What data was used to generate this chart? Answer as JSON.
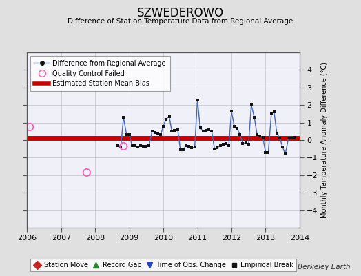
{
  "title": "SZWEDEROWO",
  "subtitle": "Difference of Station Temperature Data from Regional Average",
  "ylabel": "Monthly Temperature Anomaly Difference (°C)",
  "xlim": [
    2006,
    2014
  ],
  "ylim": [
    -5,
    5
  ],
  "yticks": [
    -4,
    -3,
    -2,
    -1,
    0,
    1,
    2,
    3,
    4
  ],
  "xticks": [
    2006,
    2007,
    2008,
    2009,
    2010,
    2011,
    2012,
    2013,
    2014
  ],
  "bias_level": 0.1,
  "fig_bg": "#e0e0e0",
  "plot_bg": "#f0f0f8",
  "line_color": "#4466bb",
  "marker_color": "#111111",
  "bias_color": "#cc0000",
  "qc_color": "#ff55bb",
  "watermark": "Berkeley Earth",
  "main_data_x": [
    2008.67,
    2008.75,
    2008.83,
    2008.92,
    2009.0,
    2009.08,
    2009.17,
    2009.25,
    2009.33,
    2009.42,
    2009.5,
    2009.58,
    2009.67,
    2009.75,
    2009.83,
    2009.92,
    2010.0,
    2010.08,
    2010.17,
    2010.25,
    2010.33,
    2010.42,
    2010.5,
    2010.58,
    2010.67,
    2010.75,
    2010.83,
    2010.92,
    2011.0,
    2011.08,
    2011.17,
    2011.25,
    2011.33,
    2011.42,
    2011.5,
    2011.58,
    2011.67,
    2011.75,
    2011.83,
    2011.92,
    2012.0,
    2012.08,
    2012.17,
    2012.25,
    2012.33,
    2012.42,
    2012.5,
    2012.58,
    2012.67,
    2012.75,
    2012.83,
    2012.92,
    2013.0,
    2013.08,
    2013.17,
    2013.25,
    2013.33,
    2013.42,
    2013.5,
    2013.58,
    2013.67,
    2013.75,
    2013.83
  ],
  "main_data_y": [
    -0.3,
    -0.4,
    1.3,
    0.3,
    0.3,
    -0.3,
    -0.3,
    -0.4,
    -0.3,
    -0.35,
    -0.35,
    -0.3,
    0.5,
    0.45,
    0.35,
    0.3,
    0.8,
    1.2,
    1.35,
    0.5,
    0.55,
    0.6,
    -0.55,
    -0.55,
    -0.3,
    -0.35,
    -0.45,
    -0.4,
    2.3,
    0.7,
    0.5,
    0.55,
    0.6,
    0.5,
    -0.5,
    -0.45,
    -0.3,
    -0.25,
    -0.2,
    -0.3,
    1.65,
    0.8,
    0.65,
    0.3,
    -0.2,
    -0.15,
    -0.25,
    2.0,
    1.3,
    0.3,
    0.25,
    0.15,
    -0.7,
    -0.7,
    1.5,
    1.6,
    0.4,
    0.1,
    -0.4,
    -0.8,
    0.1,
    0.1,
    0.15
  ],
  "qc_points_x": [
    2006.08,
    2008.83,
    2007.75
  ],
  "qc_points_y": [
    0.75,
    -0.35,
    -1.85
  ]
}
